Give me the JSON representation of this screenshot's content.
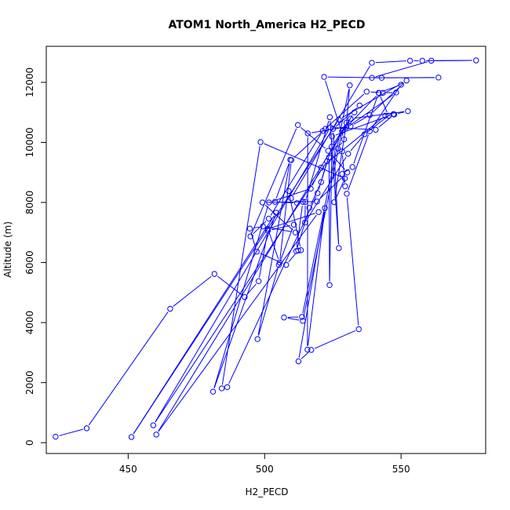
{
  "chart_data": {
    "type": "line",
    "title": "ATOM1 North_America H2_PECD",
    "xlabel": "H2_PECD",
    "ylabel": "Altitude (m)",
    "xlim": [
      420,
      581
    ],
    "ylim": [
      -360,
      13200
    ],
    "x_ticks": [
      450,
      500,
      550
    ],
    "y_ticks": [
      0,
      2000,
      4000,
      6000,
      8000,
      10000,
      12000
    ],
    "grid": false,
    "legend": "none",
    "colors": {
      "series": "#0000ff",
      "axes": "#000000"
    },
    "series": [
      {
        "marker": "open-circle",
        "points": [
          [
            423.4,
            200
          ],
          [
            434.8,
            480
          ],
          [
            465.4,
            4460
          ],
          [
            481.6,
            5620
          ],
          [
            492.7,
            4850
          ],
          [
            497.8,
            5380
          ],
          [
            501.2,
            7060
          ],
          [
            510.7,
            7260
          ],
          [
            505.2,
            5920
          ],
          [
            497.4,
            3450
          ],
          [
            509.4,
            9420
          ],
          [
            503.8,
            8020
          ],
          [
            511.9,
            7980
          ],
          [
            514.0,
            8020
          ],
          [
            511.6,
            6380
          ],
          [
            516.4,
            7820
          ],
          [
            520.7,
            8680
          ],
          [
            524.6,
            9860
          ],
          [
            532.9,
            11000
          ],
          [
            534.8,
            11230
          ],
          [
            525.1,
            10450
          ],
          [
            527.2,
            6480
          ],
          [
            523.9,
            10840
          ],
          [
            514.9,
            8020
          ],
          [
            514.8,
            7330
          ],
          [
            530.6,
            9620
          ],
          [
            536.6,
            10270
          ],
          [
            545.4,
            10890
          ],
          [
            541.9,
            11640
          ],
          [
            529.9,
            10500
          ],
          [
            531.2,
            11900
          ],
          [
            513.7,
            4190
          ],
          [
            507.1,
            4170
          ],
          [
            514.0,
            4060
          ],
          [
            528.4,
            10380
          ],
          [
            548.2,
            11660
          ],
          [
            543.3,
            11650
          ],
          [
            537.4,
            11690
          ],
          [
            521.3,
            10380
          ],
          [
            501.5,
            7460
          ],
          [
            494.8,
            6870
          ],
          [
            512.2,
            10580
          ],
          [
            523.3,
            9720
          ],
          [
            530.3,
            9000
          ],
          [
            519.2,
            8030
          ],
          [
            499.2,
            8000
          ],
          [
            511.3,
            7000
          ],
          [
            499.4,
            7200
          ],
          [
            494.6,
            7130
          ],
          [
            497.1,
            6360
          ],
          [
            507.9,
            5920
          ],
          [
            512.3,
            6400
          ],
          [
            513.3,
            6410
          ],
          [
            508.8,
            8380
          ],
          [
            509.7,
            8140
          ],
          [
            539.3,
            12650
          ],
          [
            553.3,
            12720
          ],
          [
            557.8,
            12720
          ],
          [
            577.5,
            12730
          ],
          [
            561.1,
            12720
          ],
          [
            539.3,
            12150
          ],
          [
            563.7,
            12160
          ],
          [
            542.9,
            12150
          ],
          [
            521.8,
            12180
          ],
          [
            529.1,
            10100
          ],
          [
            526.8,
            9800
          ],
          [
            528.4,
            9700
          ],
          [
            529.5,
            8540
          ],
          [
            528.4,
            8950
          ],
          [
            532.2,
            9180
          ],
          [
            541.8,
            11650
          ],
          [
            550.0,
            11920
          ],
          [
            538.5,
            10370
          ],
          [
            530.1,
            8290
          ],
          [
            534.5,
            3780
          ],
          [
            517.1,
            3090
          ],
          [
            512.4,
            2710
          ],
          [
            522.1,
            7810
          ],
          [
            515.7,
            3100
          ],
          [
            515.8,
            10300
          ],
          [
            531.5,
            10540
          ],
          [
            538.5,
            10910
          ],
          [
            552.0,
            12060
          ],
          [
            527.2,
            10760
          ],
          [
            451.2,
            190
          ],
          [
            504.2,
            7660
          ],
          [
            481.1,
            1700
          ],
          [
            501.6,
            8000
          ],
          [
            516.9,
            8460
          ],
          [
            520.7,
            9160
          ],
          [
            544.2,
            10890
          ],
          [
            547.2,
            10940
          ],
          [
            524.7,
            10200
          ],
          [
            523.8,
            5250
          ],
          [
            523.6,
            9500
          ],
          [
            530.0,
            10660
          ],
          [
            525.5,
            8010
          ],
          [
            529.4,
            8800
          ],
          [
            498.5,
            10010
          ],
          [
            484.3,
            1810
          ],
          [
            486.3,
            1850
          ],
          [
            519.4,
            8310
          ],
          [
            522.9,
            9370
          ],
          [
            459.2,
            580
          ],
          [
            524.1,
            10500
          ],
          [
            540.7,
            10420
          ],
          [
            547.5,
            10930
          ],
          [
            552.5,
            11040
          ],
          [
            531.5,
            10790
          ],
          [
            460.3,
            270
          ],
          [
            519.8,
            7680
          ],
          [
            501.2,
            7120
          ],
          [
            505.5,
            6000
          ],
          [
            509.8,
            9410
          ],
          [
            522.3,
            10450
          ]
        ]
      }
    ]
  }
}
